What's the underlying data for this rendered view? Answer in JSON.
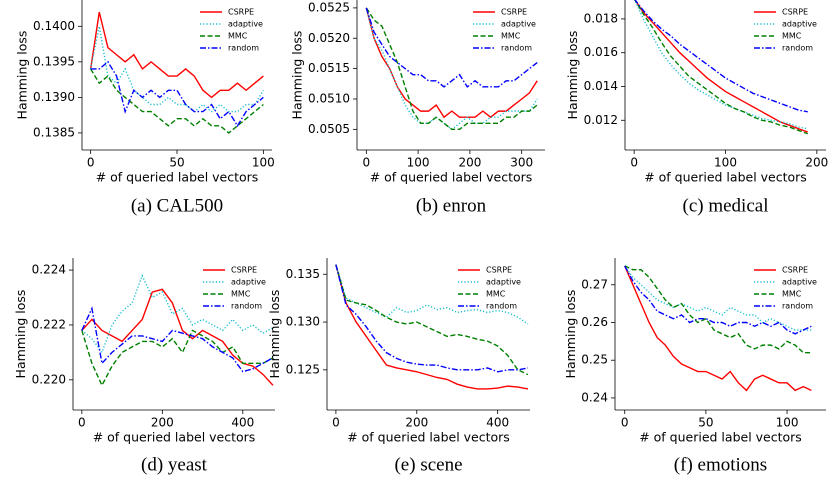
{
  "chart_data": [
    {
      "type": "line",
      "caption": "(a) CAL500",
      "xlabel": "# of queried label vectors",
      "ylabel": "Hamming loss",
      "legend": "upper right",
      "x": [
        0,
        5,
        10,
        15,
        20,
        25,
        30,
        35,
        40,
        45,
        50,
        55,
        60,
        65,
        70,
        75,
        80,
        85,
        90,
        95,
        100
      ],
      "xlim": [
        -5,
        105
      ],
      "xticks": [
        0,
        50,
        100
      ],
      "ylim": [
        0.13826,
        0.14037
      ],
      "yticks": [
        0.1385,
        {
          "value": 0.139,
          "label": "0.1390"
        },
        0.1395,
        {
          "value": 0.14,
          "label": "0.1400"
        }
      ],
      "series": [
        {
          "name": "CSRPE",
          "color": "#ff0000",
          "linestyle": "solid",
          "values": [
            0.1394,
            0.1402,
            0.1397,
            0.1396,
            0.1395,
            0.1396,
            0.1394,
            0.1395,
            0.1394,
            0.1393,
            0.1393,
            0.1394,
            0.1393,
            0.1391,
            0.139,
            0.1391,
            0.1391,
            0.1392,
            0.1391,
            0.1392,
            0.1393
          ]
        },
        {
          "name": "adaptive",
          "color": "#17becf",
          "linestyle": "dotted",
          "values": [
            0.1394,
            0.14,
            0.1393,
            0.1392,
            0.1394,
            0.1391,
            0.139,
            0.1389,
            0.1389,
            0.139,
            0.1389,
            0.1389,
            0.1388,
            0.1389,
            0.1388,
            0.1389,
            0.1388,
            0.1388,
            0.1389,
            0.1389,
            0.1391
          ]
        },
        {
          "name": "MMC",
          "color": "#008000",
          "linestyle": "dashed",
          "values": [
            0.1394,
            0.1392,
            0.1393,
            0.1391,
            0.139,
            0.1389,
            0.1388,
            0.1388,
            0.1387,
            0.1386,
            0.1387,
            0.1387,
            0.1386,
            0.1387,
            0.1386,
            0.1386,
            0.1385,
            0.1386,
            0.1387,
            0.1388,
            0.1389
          ]
        },
        {
          "name": "random",
          "color": "#0000ff",
          "linestyle": "dashdot",
          "values": [
            0.1394,
            0.1394,
            0.1395,
            0.1393,
            0.1388,
            0.1391,
            0.139,
            0.1391,
            0.139,
            0.1391,
            0.1391,
            0.1389,
            0.1388,
            0.1388,
            0.1389,
            0.1387,
            0.1388,
            0.1386,
            0.1388,
            0.1389,
            0.139
          ]
        }
      ]
    },
    {
      "type": "line",
      "caption": "(b) enron",
      "xlabel": "# of queried label vectors",
      "ylabel": "Hamming loss",
      "legend": "upper right",
      "x": [
        0,
        15,
        30,
        45,
        60,
        75,
        90,
        105,
        120,
        135,
        150,
        165,
        180,
        195,
        210,
        225,
        240,
        255,
        270,
        285,
        300,
        315,
        330
      ],
      "xlim": [
        -18,
        345
      ],
      "xticks": [
        0,
        100,
        200,
        300
      ],
      "ylim": [
        0.05016,
        0.05263
      ],
      "yticks": [
        0.0505,
        {
          "value": 0.051,
          "label": "0.0510"
        },
        0.0515,
        {
          "value": 0.052,
          "label": "0.0520"
        },
        0.0525
      ],
      "series": [
        {
          "name": "CSRPE",
          "color": "#ff0000",
          "linestyle": "solid",
          "values": [
            0.0525,
            0.052,
            0.0517,
            0.0515,
            0.0512,
            0.051,
            0.0509,
            0.0508,
            0.0508,
            0.0509,
            0.0507,
            0.0508,
            0.0507,
            0.0507,
            0.0507,
            0.0508,
            0.0507,
            0.0508,
            0.0508,
            0.0509,
            0.051,
            0.0511,
            0.0513
          ]
        },
        {
          "name": "adaptive",
          "color": "#17becf",
          "linestyle": "dotted",
          "values": [
            0.0525,
            0.052,
            0.0518,
            0.0515,
            0.0512,
            0.0509,
            0.0507,
            0.0506,
            0.0506,
            0.0507,
            0.0506,
            0.0505,
            0.0506,
            0.0507,
            0.0506,
            0.0506,
            0.0507,
            0.0507,
            0.0508,
            0.0508,
            0.0508,
            0.0508,
            0.051
          ]
        },
        {
          "name": "MMC",
          "color": "#008000",
          "linestyle": "dashed",
          "values": [
            0.0525,
            0.0523,
            0.0522,
            0.0519,
            0.0516,
            0.0512,
            0.0508,
            0.0506,
            0.0506,
            0.0507,
            0.0506,
            0.0505,
            0.0505,
            0.0506,
            0.0506,
            0.0506,
            0.0506,
            0.0506,
            0.0507,
            0.0507,
            0.0508,
            0.0508,
            0.0509
          ]
        },
        {
          "name": "random",
          "color": "#0000ff",
          "linestyle": "dashdot",
          "values": [
            0.0525,
            0.0521,
            0.0519,
            0.0517,
            0.0516,
            0.0515,
            0.0514,
            0.0514,
            0.0513,
            0.0513,
            0.0512,
            0.0513,
            0.0514,
            0.0512,
            0.0513,
            0.0512,
            0.0512,
            0.0512,
            0.0513,
            0.0513,
            0.0514,
            0.0515,
            0.0516
          ]
        }
      ]
    },
    {
      "type": "line",
      "caption": "(c) medical",
      "xlabel": "# of queried label vectors",
      "ylabel": "Hamming loss",
      "legend": "upper right",
      "x": [
        0,
        10,
        20,
        30,
        40,
        50,
        60,
        70,
        80,
        90,
        100,
        110,
        120,
        130,
        140,
        150,
        160,
        170,
        180,
        190
      ],
      "xlim": [
        -10,
        210
      ],
      "xticks": [
        0,
        100,
        200
      ],
      "ylim": [
        0.01024,
        0.01912
      ],
      "yticks": [
        0.012,
        0.014,
        0.016,
        0.018
      ],
      "series": [
        {
          "name": "CSRPE",
          "color": "#ff0000",
          "linestyle": "solid",
          "values": [
            0.0192,
            0.0184,
            0.0178,
            0.0172,
            0.0166,
            0.016,
            0.0155,
            0.015,
            0.0145,
            0.0141,
            0.0137,
            0.0134,
            0.0131,
            0.0128,
            0.0125,
            0.0122,
            0.0119,
            0.0117,
            0.0115,
            0.0113
          ]
        },
        {
          "name": "adaptive",
          "color": "#17becf",
          "linestyle": "dotted",
          "values": [
            0.0192,
            0.018,
            0.017,
            0.016,
            0.0153,
            0.0147,
            0.0142,
            0.0138,
            0.0135,
            0.0132,
            0.0129,
            0.0127,
            0.0125,
            0.0123,
            0.0121,
            0.012,
            0.0119,
            0.0118,
            0.0116,
            0.0115
          ]
        },
        {
          "name": "MMC",
          "color": "#008000",
          "linestyle": "dashed",
          "values": [
            0.0192,
            0.0183,
            0.0175,
            0.0166,
            0.0158,
            0.0152,
            0.0146,
            0.0142,
            0.0138,
            0.0134,
            0.013,
            0.0127,
            0.0125,
            0.0122,
            0.012,
            0.0119,
            0.0117,
            0.0116,
            0.0114,
            0.0112
          ]
        },
        {
          "name": "random",
          "color": "#0000ff",
          "linestyle": "dashdot",
          "values": [
            0.0192,
            0.0185,
            0.0179,
            0.0174,
            0.017,
            0.0165,
            0.0161,
            0.0157,
            0.0153,
            0.0149,
            0.0145,
            0.0142,
            0.0139,
            0.0136,
            0.0134,
            0.0132,
            0.013,
            0.0128,
            0.0126,
            0.0125
          ]
        }
      ]
    },
    {
      "type": "line",
      "caption": "(d) yeast",
      "xlabel": "# of queried label vectors",
      "ylabel": "Hamming loss",
      "legend": "upper right",
      "x": [
        0,
        25,
        50,
        75,
        100,
        125,
        150,
        175,
        200,
        225,
        250,
        275,
        300,
        325,
        350,
        375,
        400,
        425,
        450,
        475
      ],
      "xlim": [
        -22,
        480
      ],
      "xticks": [
        0,
        200,
        400
      ],
      "ylim": [
        0.2189,
        0.22444
      ],
      "yticks": [
        {
          "value": 0.22,
          "label": "0.220"
        },
        0.222,
        0.224
      ],
      "series": [
        {
          "name": "CSRPE",
          "color": "#ff0000",
          "linestyle": "solid",
          "values": [
            0.2218,
            0.2222,
            0.2218,
            0.2216,
            0.2214,
            0.2218,
            0.2222,
            0.2232,
            0.2233,
            0.2228,
            0.2218,
            0.2215,
            0.2218,
            0.2216,
            0.2214,
            0.2209,
            0.2206,
            0.2205,
            0.2202,
            0.2198
          ]
        },
        {
          "name": "adaptive",
          "color": "#17becf",
          "linestyle": "dotted",
          "values": [
            0.2218,
            0.2215,
            0.221,
            0.222,
            0.2225,
            0.2228,
            0.2238,
            0.223,
            0.2232,
            0.2224,
            0.2226,
            0.222,
            0.2222,
            0.222,
            0.2218,
            0.2222,
            0.2218,
            0.222,
            0.2217,
            0.2219
          ]
        },
        {
          "name": "MMC",
          "color": "#008000",
          "linestyle": "dashed",
          "values": [
            0.2218,
            0.2206,
            0.2198,
            0.2205,
            0.221,
            0.2212,
            0.2214,
            0.2214,
            0.2212,
            0.2215,
            0.221,
            0.2218,
            0.2216,
            0.2214,
            0.221,
            0.2212,
            0.2206,
            0.2206,
            0.2206,
            0.2208
          ]
        },
        {
          "name": "random",
          "color": "#0000ff",
          "linestyle": "dashdot",
          "values": [
            0.2218,
            0.2226,
            0.2206,
            0.221,
            0.2213,
            0.2216,
            0.2216,
            0.2215,
            0.2214,
            0.2218,
            0.2217,
            0.2216,
            0.2215,
            0.2212,
            0.221,
            0.2208,
            0.2203,
            0.2204,
            0.2206,
            0.2208
          ]
        }
      ]
    },
    {
      "type": "line",
      "caption": "(e) scene",
      "xlabel": "# of queried label vectors",
      "ylabel": "Hamming loss",
      "legend": "upper right",
      "x": [
        0,
        25,
        50,
        75,
        100,
        125,
        150,
        175,
        200,
        225,
        250,
        275,
        300,
        325,
        350,
        375,
        400,
        425,
        450,
        475
      ],
      "xlim": [
        -22,
        480
      ],
      "xticks": [
        0,
        200,
        400
      ],
      "ylim": [
        0.1208,
        0.1367
      ],
      "yticks": [
        0.125,
        {
          "value": 0.13,
          "label": "0.130"
        },
        0.135
      ],
      "series": [
        {
          "name": "CSRPE",
          "color": "#ff0000",
          "linestyle": "solid",
          "values": [
            0.136,
            0.132,
            0.13,
            0.1285,
            0.127,
            0.1255,
            0.1252,
            0.125,
            0.1248,
            0.1245,
            0.1242,
            0.124,
            0.1235,
            0.1232,
            0.123,
            0.123,
            0.1231,
            0.1233,
            0.1232,
            0.123
          ]
        },
        {
          "name": "adaptive",
          "color": "#17becf",
          "linestyle": "dotted",
          "values": [
            0.136,
            0.1325,
            0.132,
            0.1315,
            0.131,
            0.1305,
            0.1315,
            0.131,
            0.1312,
            0.1318,
            0.1313,
            0.1315,
            0.131,
            0.1312,
            0.1313,
            0.131,
            0.1312,
            0.131,
            0.1305,
            0.1298
          ]
        },
        {
          "name": "MMC",
          "color": "#008000",
          "linestyle": "dashed",
          "values": [
            0.136,
            0.1323,
            0.132,
            0.1318,
            0.1312,
            0.1305,
            0.13,
            0.1298,
            0.13,
            0.1295,
            0.129,
            0.1285,
            0.1287,
            0.1285,
            0.1282,
            0.128,
            0.1275,
            0.1265,
            0.125,
            0.1245
          ]
        },
        {
          "name": "random",
          "color": "#0000ff",
          "linestyle": "dashdot",
          "values": [
            0.136,
            0.1318,
            0.1308,
            0.1295,
            0.128,
            0.1268,
            0.1262,
            0.1258,
            0.1256,
            0.1255,
            0.1255,
            0.1252,
            0.125,
            0.125,
            0.125,
            0.1252,
            0.1248,
            0.125,
            0.125,
            0.1252
          ]
        }
      ]
    },
    {
      "type": "line",
      "caption": "(f) emotions",
      "xlabel": "# of queried label vectors",
      "ylabel": "Hamming loss",
      "legend": "upper right",
      "x": [
        0,
        5,
        10,
        15,
        20,
        25,
        30,
        35,
        40,
        45,
        50,
        55,
        60,
        65,
        70,
        75,
        80,
        85,
        90,
        95,
        100,
        105,
        110,
        115
      ],
      "xlim": [
        -6,
        124
      ],
      "xticks": [
        0,
        50,
        100
      ],
      "ylim": [
        0.2368,
        0.2771
      ],
      "yticks": [
        0.24,
        0.25,
        0.26,
        0.27
      ],
      "series": [
        {
          "name": "CSRPE",
          "color": "#ff0000",
          "linestyle": "solid",
          "values": [
            0.275,
            0.27,
            0.265,
            0.26,
            0.256,
            0.254,
            0.251,
            0.249,
            0.248,
            0.247,
            0.247,
            0.246,
            0.245,
            0.247,
            0.244,
            0.242,
            0.245,
            0.246,
            0.245,
            0.244,
            0.244,
            0.242,
            0.243,
            0.242
          ]
        },
        {
          "name": "adaptive",
          "color": "#17becf",
          "linestyle": "dotted",
          "values": [
            0.275,
            0.272,
            0.27,
            0.268,
            0.266,
            0.265,
            0.264,
            0.265,
            0.264,
            0.263,
            0.264,
            0.263,
            0.262,
            0.264,
            0.263,
            0.262,
            0.262,
            0.26,
            0.261,
            0.26,
            0.259,
            0.258,
            0.258,
            0.258
          ]
        },
        {
          "name": "MMC",
          "color": "#008000",
          "linestyle": "dashed",
          "values": [
            0.275,
            0.274,
            0.274,
            0.272,
            0.269,
            0.266,
            0.264,
            0.265,
            0.262,
            0.26,
            0.261,
            0.258,
            0.257,
            0.256,
            0.257,
            0.254,
            0.253,
            0.254,
            0.254,
            0.253,
            0.255,
            0.254,
            0.252,
            0.252
          ]
        },
        {
          "name": "random",
          "color": "#0000ff",
          "linestyle": "dashdot",
          "values": [
            0.275,
            0.271,
            0.268,
            0.266,
            0.263,
            0.262,
            0.261,
            0.262,
            0.26,
            0.261,
            0.261,
            0.26,
            0.26,
            0.259,
            0.26,
            0.26,
            0.259,
            0.26,
            0.259,
            0.26,
            0.258,
            0.257,
            0.258,
            0.259
          ]
        }
      ]
    }
  ]
}
